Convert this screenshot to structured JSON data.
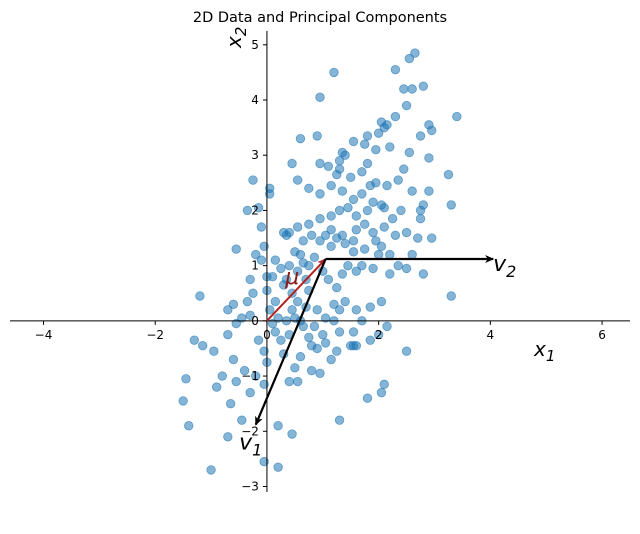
{
  "chart_data": {
    "type": "scatter",
    "title": "2D Data and Principal Components",
    "xlabel": "x",
    "xlabel_sub": "1",
    "ylabel": "x",
    "ylabel_sub": "2",
    "xlim": [
      -4.6,
      6.5
    ],
    "ylim": [
      -3.1,
      5.25
    ],
    "xticks": [
      -4,
      -2,
      0,
      2,
      4,
      6
    ],
    "yticks": [
      -3,
      -2,
      -1,
      0,
      1,
      2,
      3,
      4,
      5
    ],
    "tick_labels_x": [
      "−4",
      "−2",
      "0",
      "2",
      "4",
      "6"
    ],
    "tick_labels_y": [
      "−3",
      "−2",
      "−1",
      "0",
      "1",
      "2",
      "3",
      "4",
      "5"
    ],
    "grid": false,
    "axes_through_origin": true,
    "point_color": "#1f77b4",
    "point_alpha": 0.55,
    "mean": {
      "label": "μ",
      "x": 1.05,
      "y": 1.12,
      "color": "#b22222"
    },
    "vectors": [
      {
        "label": "v",
        "sub": "1",
        "x": -1.25,
        "y": -3.0,
        "color": "#000000"
      },
      {
        "label": "v",
        "sub": "2",
        "x": 3.0,
        "y": 0.0,
        "color": "#000000"
      }
    ],
    "points": [
      [
        -1.3,
        -0.35
      ],
      [
        -1.15,
        -0.45
      ],
      [
        -0.95,
        -0.55
      ],
      [
        -1.5,
        -1.45
      ],
      [
        -1.4,
        -1.9
      ],
      [
        -1.45,
        -1.05
      ],
      [
        -0.8,
        -1.0
      ],
      [
        -0.6,
        -0.7
      ],
      [
        -0.9,
        -1.2
      ],
      [
        -0.55,
        -1.1
      ],
      [
        -0.65,
        -1.5
      ],
      [
        -0.7,
        -2.1
      ],
      [
        -0.45,
        -1.8
      ],
      [
        -1.0,
        -2.7
      ],
      [
        -0.3,
        -1.3
      ],
      [
        -0.4,
        -0.9
      ],
      [
        -0.2,
        -1.0
      ],
      [
        -0.7,
        -0.25
      ],
      [
        -0.55,
        -0.05
      ],
      [
        -0.45,
        0.05
      ],
      [
        -0.3,
        0.1
      ],
      [
        -0.7,
        0.2
      ],
      [
        -0.6,
        0.3
      ],
      [
        -0.35,
        0.35
      ],
      [
        -0.25,
        0.5
      ],
      [
        -1.2,
        0.45
      ],
      [
        -0.2,
        1.2
      ],
      [
        -0.55,
        1.3
      ],
      [
        -0.1,
        1.7
      ],
      [
        -0.15,
        2.05
      ],
      [
        -0.35,
        2.0
      ],
      [
        -0.25,
        2.55
      ],
      [
        0.05,
        2.3
      ],
      [
        0.05,
        2.4
      ],
      [
        -0.05,
        1.35
      ],
      [
        -0.1,
        1.1
      ],
      [
        0.0,
        0.8
      ],
      [
        0.0,
        0.55
      ],
      [
        0.05,
        0.2
      ],
      [
        0.1,
        -0.05
      ],
      [
        0.15,
        -0.2
      ],
      [
        -0.15,
        -0.35
      ],
      [
        -0.05,
        -0.55
      ],
      [
        0.0,
        -0.75
      ],
      [
        -0.05,
        -1.15
      ],
      [
        0.2,
        -1.9
      ],
      [
        0.45,
        -2.05
      ],
      [
        0.2,
        -2.65
      ],
      [
        -0.05,
        -2.55
      ],
      [
        0.4,
        -1.1
      ],
      [
        0.55,
        -1.1
      ],
      [
        0.5,
        -0.85
      ],
      [
        0.6,
        -0.65
      ],
      [
        0.3,
        -0.6
      ],
      [
        0.25,
        -0.35
      ],
      [
        0.4,
        -0.25
      ],
      [
        0.35,
        0.0
      ],
      [
        0.5,
        0.05
      ],
      [
        0.65,
        -0.1
      ],
      [
        0.75,
        -0.3
      ],
      [
        0.8,
        -0.45
      ],
      [
        0.9,
        -0.5
      ],
      [
        0.8,
        -0.9
      ],
      [
        0.95,
        -0.95
      ],
      [
        1.15,
        -0.7
      ],
      [
        1.25,
        -0.55
      ],
      [
        1.05,
        -0.4
      ],
      [
        1.3,
        -0.2
      ],
      [
        1.2,
        0.0
      ],
      [
        1.3,
        0.2
      ],
      [
        1.4,
        0.35
      ],
      [
        1.6,
        0.2
      ],
      [
        1.7,
        0.0
      ],
      [
        1.55,
        -0.2
      ],
      [
        1.6,
        -0.45
      ],
      [
        1.55,
        -0.45
      ],
      [
        1.5,
        -0.45
      ],
      [
        1.85,
        -0.35
      ],
      [
        2.0,
        -0.25
      ],
      [
        2.15,
        -0.1
      ],
      [
        1.8,
        -1.4
      ],
      [
        2.05,
        -1.3
      ],
      [
        2.1,
        -1.15
      ],
      [
        1.3,
        -1.8
      ],
      [
        2.5,
        -0.55
      ],
      [
        1.05,
        0.05
      ],
      [
        0.9,
        0.2
      ],
      [
        0.7,
        0.25
      ],
      [
        0.55,
        0.35
      ],
      [
        0.45,
        0.5
      ],
      [
        0.35,
        0.75
      ],
      [
        0.25,
        0.95
      ],
      [
        0.15,
        1.1
      ],
      [
        0.4,
        1.0
      ],
      [
        0.55,
        0.9
      ],
      [
        0.7,
        0.75
      ],
      [
        0.75,
        1.0
      ],
      [
        0.85,
        1.15
      ],
      [
        1.0,
        0.9
      ],
      [
        1.1,
        0.75
      ],
      [
        1.25,
        0.6
      ],
      [
        1.35,
        0.85
      ],
      [
        1.45,
        1.0
      ],
      [
        1.55,
        1.25
      ],
      [
        1.4,
        1.4
      ],
      [
        1.25,
        1.5
      ],
      [
        1.15,
        1.35
      ],
      [
        0.95,
        1.45
      ],
      [
        0.8,
        1.55
      ],
      [
        0.6,
        1.2
      ],
      [
        0.5,
        1.25
      ],
      [
        0.65,
        1.45
      ],
      [
        0.4,
        1.6
      ],
      [
        0.3,
        1.6
      ],
      [
        0.35,
        1.55
      ],
      [
        0.55,
        1.7
      ],
      [
        0.75,
        1.75
      ],
      [
        0.95,
        1.85
      ],
      [
        1.15,
        1.9
      ],
      [
        1.3,
        2.0
      ],
      [
        1.45,
        2.05
      ],
      [
        1.6,
        1.9
      ],
      [
        1.75,
        1.75
      ],
      [
        1.9,
        1.6
      ],
      [
        2.05,
        1.35
      ],
      [
        2.2,
        1.2
      ],
      [
        2.35,
        1.0
      ],
      [
        2.2,
        0.85
      ],
      [
        1.9,
        0.95
      ],
      [
        1.7,
        1.0
      ],
      [
        1.75,
        1.3
      ],
      [
        1.95,
        1.45
      ],
      [
        2.1,
        1.7
      ],
      [
        2.3,
        1.55
      ],
      [
        2.5,
        1.6
      ],
      [
        2.7,
        1.5
      ],
      [
        2.95,
        1.5
      ],
      [
        2.8,
        0.85
      ],
      [
        2.5,
        0.95
      ],
      [
        2.6,
        1.2
      ],
      [
        3.3,
        0.45
      ],
      [
        2.05,
        0.35
      ],
      [
        1.85,
        0.25
      ],
      [
        2.25,
        1.85
      ],
      [
        2.1,
        2.05
      ],
      [
        1.9,
        2.15
      ],
      [
        1.7,
        2.3
      ],
      [
        1.55,
        2.2
      ],
      [
        1.35,
        2.35
      ],
      [
        1.15,
        2.45
      ],
      [
        0.95,
        2.3
      ],
      [
        0.75,
        2.4
      ],
      [
        0.55,
        2.55
      ],
      [
        0.45,
        2.85
      ],
      [
        0.6,
        3.3
      ],
      [
        0.95,
        2.85
      ],
      [
        1.1,
        2.8
      ],
      [
        1.3,
        2.9
      ],
      [
        1.4,
        3.0
      ],
      [
        1.35,
        3.05
      ],
      [
        1.5,
        2.6
      ],
      [
        1.7,
        2.7
      ],
      [
        1.8,
        2.85
      ],
      [
        1.95,
        2.5
      ],
      [
        2.15,
        2.45
      ],
      [
        2.35,
        2.55
      ],
      [
        2.45,
        2.75
      ],
      [
        2.6,
        2.35
      ],
      [
        2.8,
        2.1
      ],
      [
        2.9,
        2.35
      ],
      [
        2.75,
        1.85
      ],
      [
        2.05,
        2.1
      ],
      [
        1.95,
        3.1
      ],
      [
        2.2,
        3.15
      ],
      [
        2.55,
        3.05
      ],
      [
        2.9,
        2.95
      ],
      [
        3.25,
        2.65
      ],
      [
        3.3,
        2.1
      ],
      [
        1.8,
        3.35
      ],
      [
        2.0,
        3.4
      ],
      [
        2.1,
        3.5
      ],
      [
        2.05,
        3.6
      ],
      [
        2.15,
        3.55
      ],
      [
        1.75,
        3.2
      ],
      [
        1.55,
        3.25
      ],
      [
        0.9,
        3.35
      ],
      [
        0.95,
        4.05
      ],
      [
        1.2,
        4.5
      ],
      [
        2.5,
        3.9
      ],
      [
        2.45,
        4.2
      ],
      [
        2.6,
        4.2
      ],
      [
        2.8,
        4.25
      ],
      [
        2.3,
        4.55
      ],
      [
        2.55,
        4.75
      ],
      [
        2.65,
        4.85
      ],
      [
        2.75,
        3.35
      ],
      [
        2.9,
        3.55
      ],
      [
        2.95,
        3.45
      ],
      [
        3.4,
        3.7
      ],
      [
        2.3,
        3.7
      ],
      [
        1.3,
        2.75
      ],
      [
        1.25,
        2.65
      ],
      [
        1.15,
        1.65
      ],
      [
        1.35,
        1.55
      ],
      [
        1.6,
        1.65
      ],
      [
        1.8,
        2.0
      ],
      [
        2.0,
        1.2
      ],
      [
        0.15,
        0.35
      ],
      [
        0.3,
        0.65
      ],
      [
        0.45,
        0.2
      ],
      [
        0.6,
        0.0
      ],
      [
        0.85,
        -0.1
      ],
      [
        1.0,
        -0.25
      ],
      [
        0.75,
        0.55
      ],
      [
        1.2,
        0.3
      ],
      [
        -0.3,
        0.75
      ],
      [
        0.2,
        0.05
      ],
      [
        0.65,
        1.05
      ],
      [
        1.05,
        1.55
      ],
      [
        1.6,
        0.9
      ],
      [
        2.4,
        2.0
      ],
      [
        2.75,
        2.0
      ],
      [
        1.85,
        2.45
      ],
      [
        1.55,
        1.45
      ],
      [
        0.1,
        0.8
      ]
    ]
  }
}
